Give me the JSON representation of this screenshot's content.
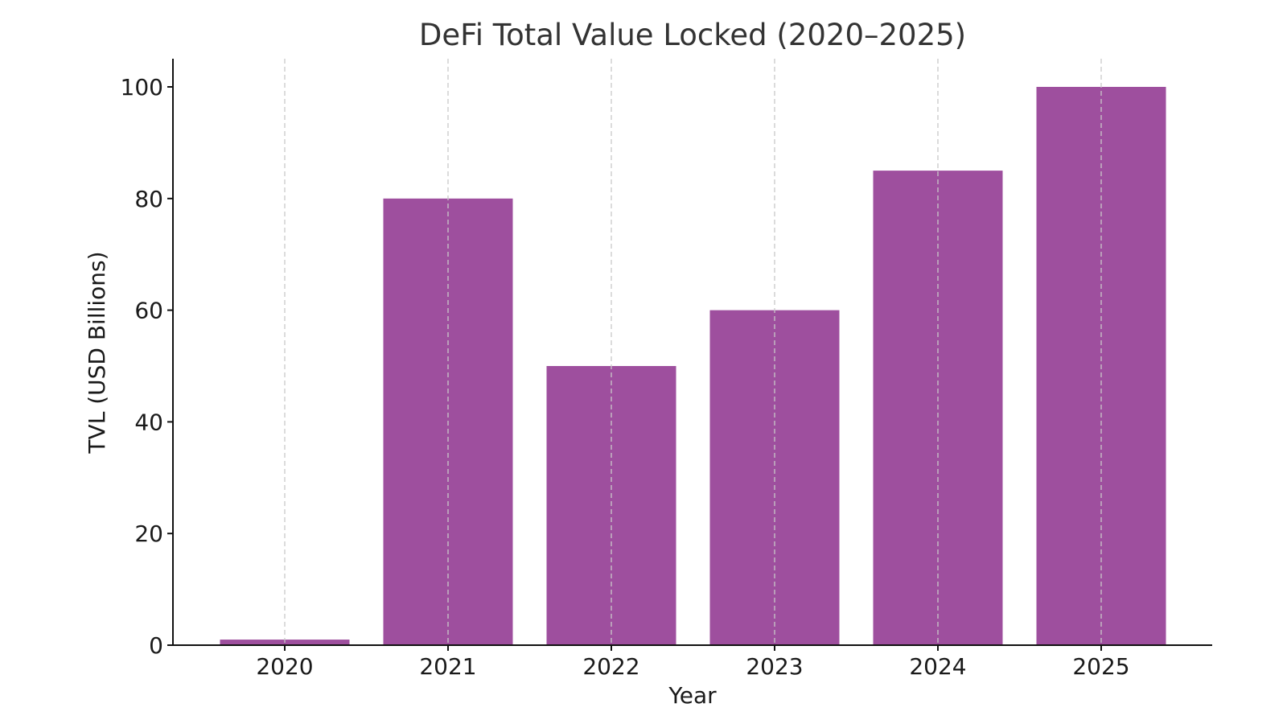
{
  "chart_data": {
    "type": "bar",
    "title": "DeFi Total Value Locked (2020–2025)",
    "xlabel": "Year",
    "ylabel": "TVL (USD Billions)",
    "categories": [
      "2020",
      "2021",
      "2022",
      "2023",
      "2024",
      "2025"
    ],
    "values": [
      1,
      80,
      50,
      60,
      85,
      100
    ],
    "ylim": [
      0,
      105
    ],
    "yticks": [
      "0",
      "20",
      "40",
      "60",
      "80",
      "100"
    ],
    "grid": "vertical dashed",
    "bar_color": "#9e4f9e"
  }
}
